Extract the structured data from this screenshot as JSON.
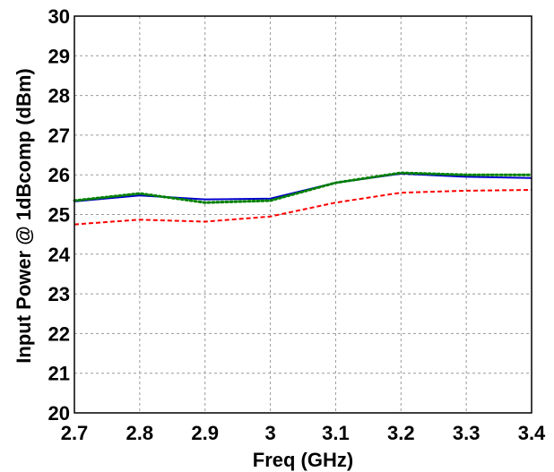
{
  "chart_data": {
    "type": "line",
    "xlabel": "Freq (GHz)",
    "ylabel": "Input Power @ 1dBcomp (dBm)",
    "xlim": [
      2.7,
      3.4
    ],
    "ylim": [
      20,
      30
    ],
    "xticks": [
      "2.7",
      "2.8",
      "2.9",
      "3",
      "3.1",
      "3.2",
      "3.3",
      "3.4"
    ],
    "yticks": [
      "20",
      "21",
      "22",
      "23",
      "24",
      "25",
      "26",
      "27",
      "28",
      "29",
      "30"
    ],
    "grid": true,
    "x": [
      2.7,
      2.8,
      2.9,
      3.0,
      3.1,
      3.2,
      3.3,
      3.4
    ],
    "series": [
      {
        "color": "#0000cc",
        "style": "solid",
        "values": [
          25.33,
          25.48,
          25.38,
          25.4,
          25.8,
          26.03,
          25.95,
          25.92
        ]
      },
      {
        "color": "#008000",
        "style": "dotted",
        "values": [
          25.35,
          25.53,
          25.3,
          25.35,
          25.8,
          26.05,
          26.0,
          26.0
        ]
      },
      {
        "color": "#ff0000",
        "style": "dashed",
        "values": [
          24.75,
          24.87,
          24.82,
          24.95,
          25.3,
          25.55,
          25.6,
          25.62
        ]
      }
    ]
  }
}
